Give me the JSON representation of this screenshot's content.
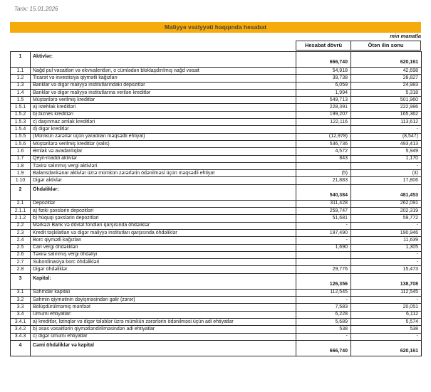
{
  "meta": {
    "date_label": "Tarix: 15.01.2026",
    "unit_note": "min manatla"
  },
  "title": "Maliyyə vəziyyəti haqqında hesabat",
  "colors": {
    "banner_bg": "#F5AB0C",
    "banner_text": "#4b4335",
    "border": "#2a2a2a"
  },
  "table": {
    "columns": {
      "current_period": "Hesabat dövrü",
      "previous_year_end": "Ötən ilin sonu"
    },
    "rows": [
      {
        "no": "1",
        "label": "Aktivlər:",
        "v1": "666,740",
        "v2": "620,161",
        "section": true
      },
      {
        "no": "1.1",
        "label": "Nağd pul vəsaitləri və  ekvivalentləri, o cümlədən bloklaşdırılmış nağd vəsait",
        "v1": "54,918",
        "v2": "42,698"
      },
      {
        "no": "1.2",
        "label": "Ticarət və investisiya qiymətli kağızları",
        "v1": "39,738",
        "v2": "28,827"
      },
      {
        "no": "1.3",
        "label": "Banklar və digər maliyyə institutlarındakı depozitlər",
        "v1": "6,059",
        "v2": "24,983"
      },
      {
        "no": "1.4",
        "label": "Banklar və digər maliyyə institutlarına verilən kreditlər",
        "v1": "1,994",
        "v2": "5,318"
      },
      {
        "no": "1.5",
        "label": "Müştərilərə verilmiş kreditlər",
        "v1": "549,713",
        "v2": "501,960"
      },
      {
        "no": "1.5.1",
        "label": "a) istehlak kreditləri",
        "v1": "228,391",
        "v2": "222,986"
      },
      {
        "no": "1.5.2",
        "label": "b) biznes kreditləri",
        "v1": "199,207",
        "v2": "165,362"
      },
      {
        "no": "1.5.3",
        "label": "c) daşınmaz əmlak kreditləri",
        "v1": "122,116",
        "v2": "113,612"
      },
      {
        "no": "1.5.4",
        "label": "d) digər kreditlər",
        "v1": "",
        "v2": "-"
      },
      {
        "no": "1.5.5",
        "label": "(Mümkün zərərlər üçün yaradılan məqsədli ehtiyat)",
        "v1": "(12,978)",
        "v2": "(8,547)"
      },
      {
        "no": "1.5.6",
        "label": "Müştərilərə verilmiş kreditlər (xalis)",
        "v1": "536,736",
        "v2": "493,413"
      },
      {
        "no": "1.6",
        "label": "Əmlak və avadanlıqlar",
        "v1": "4,572",
        "v2": "5,949"
      },
      {
        "no": "1.7",
        "label": "Qeyri-maddi aktivlər",
        "v1": "843",
        "v2": "1,170"
      },
      {
        "no": "1.8",
        "label": "Təxirə salınmış vergi aktivləri",
        "v1": "",
        "v2": "-"
      },
      {
        "no": "1.9",
        "label": "Balansdankənar aktivlər üzrə mümkün zərərlərin ödənilməsi üçün məqsədli ehtiyat",
        "v1": "(5)",
        "v2": "(3)"
      },
      {
        "no": "1.10",
        "label": "Digər aktivlər",
        "v1": "21,883",
        "v2": "17,806"
      },
      {
        "no": "2",
        "label": "Öhdəliklər:",
        "v1": "540,384",
        "v2": "481,453",
        "section": true
      },
      {
        "no": "2.1",
        "label": "Depozitlər",
        "v1": "311,428",
        "v2": "262,091"
      },
      {
        "no": "2.1.1",
        "label": "a) fiziki şəxslərin depozitləri",
        "v1": "259,747",
        "v2": "202,319"
      },
      {
        "no": "2.1.2",
        "label": "b) hüquqi şəxslərin depozitləri",
        "v1": "51,681",
        "v2": "59,772"
      },
      {
        "no": "2.2",
        "label": "Mərkəzi Bank və dövlət fondları qarşısında öhdəliklər",
        "v1": "-",
        "v2": "-"
      },
      {
        "no": "2.3",
        "label": "Kredit təşkilatları və digər maliyyə institutları qarşısında öhdəliklər",
        "v1": "197,490",
        "v2": "190,946"
      },
      {
        "no": "2.4",
        "label": "Borc qiymətli kağızları",
        "v1": "-",
        "v2": "11,639"
      },
      {
        "no": "2.5",
        "label": "Cari vergi öhdəlikləri",
        "v1": "1,690",
        "v2": "1,305"
      },
      {
        "no": "2.6",
        "label": "Təxirə salınmış vergi öhdəliyi",
        "v1": "",
        "v2": "-"
      },
      {
        "no": "2.7",
        "label": "Subordinasiya borc öhdəlikləri",
        "v1": "",
        "v2": "-"
      },
      {
        "no": "2.8",
        "label": "Digər öhdəliklər",
        "v1": "29,776",
        "v2": "15,473"
      },
      {
        "no": "3",
        "label": "Kapital:",
        "v1": "126,356",
        "v2": "138,708",
        "section": true
      },
      {
        "no": "3.1",
        "label": "Səhmdar kapitalı",
        "v1": "112,545",
        "v2": "112,545"
      },
      {
        "no": "3.2",
        "label": "Səhmin qiymətinin dəyişməsindən gəlir (zərər)",
        "v1": "-",
        "v2": "-"
      },
      {
        "no": "3.3",
        "label": "Bölüşdürülməmiş mənfəət",
        "v1": "7,583",
        "v2": "20,051"
      },
      {
        "no": "3.4",
        "label": "Ümumi ehtiyatlar:",
        "v1": "6,228",
        "v2": "6,112"
      },
      {
        "no": "3.4.1",
        "label": "a) kreditlər, lizinqlər və digər tələblər üzrə mümkün zərərlərin ödənilməsi üçün adi ehtiyatlar",
        "v1": "5,689",
        "v2": "5,574"
      },
      {
        "no": "3.4.2",
        "label": "b) əsas vəsaitlərin qiymətləndirilməsindən adi ehtiyatlar",
        "v1": "538",
        "v2": "538"
      },
      {
        "no": "3.4.3",
        "label": "c) digər ümumi ehtiyatlar",
        "v1": "-",
        "v2": "-"
      },
      {
        "no": "4",
        "label": "Cəmi öhdəliklər və kapital",
        "v1": "666,740",
        "v2": "620,161",
        "section": true
      }
    ]
  }
}
